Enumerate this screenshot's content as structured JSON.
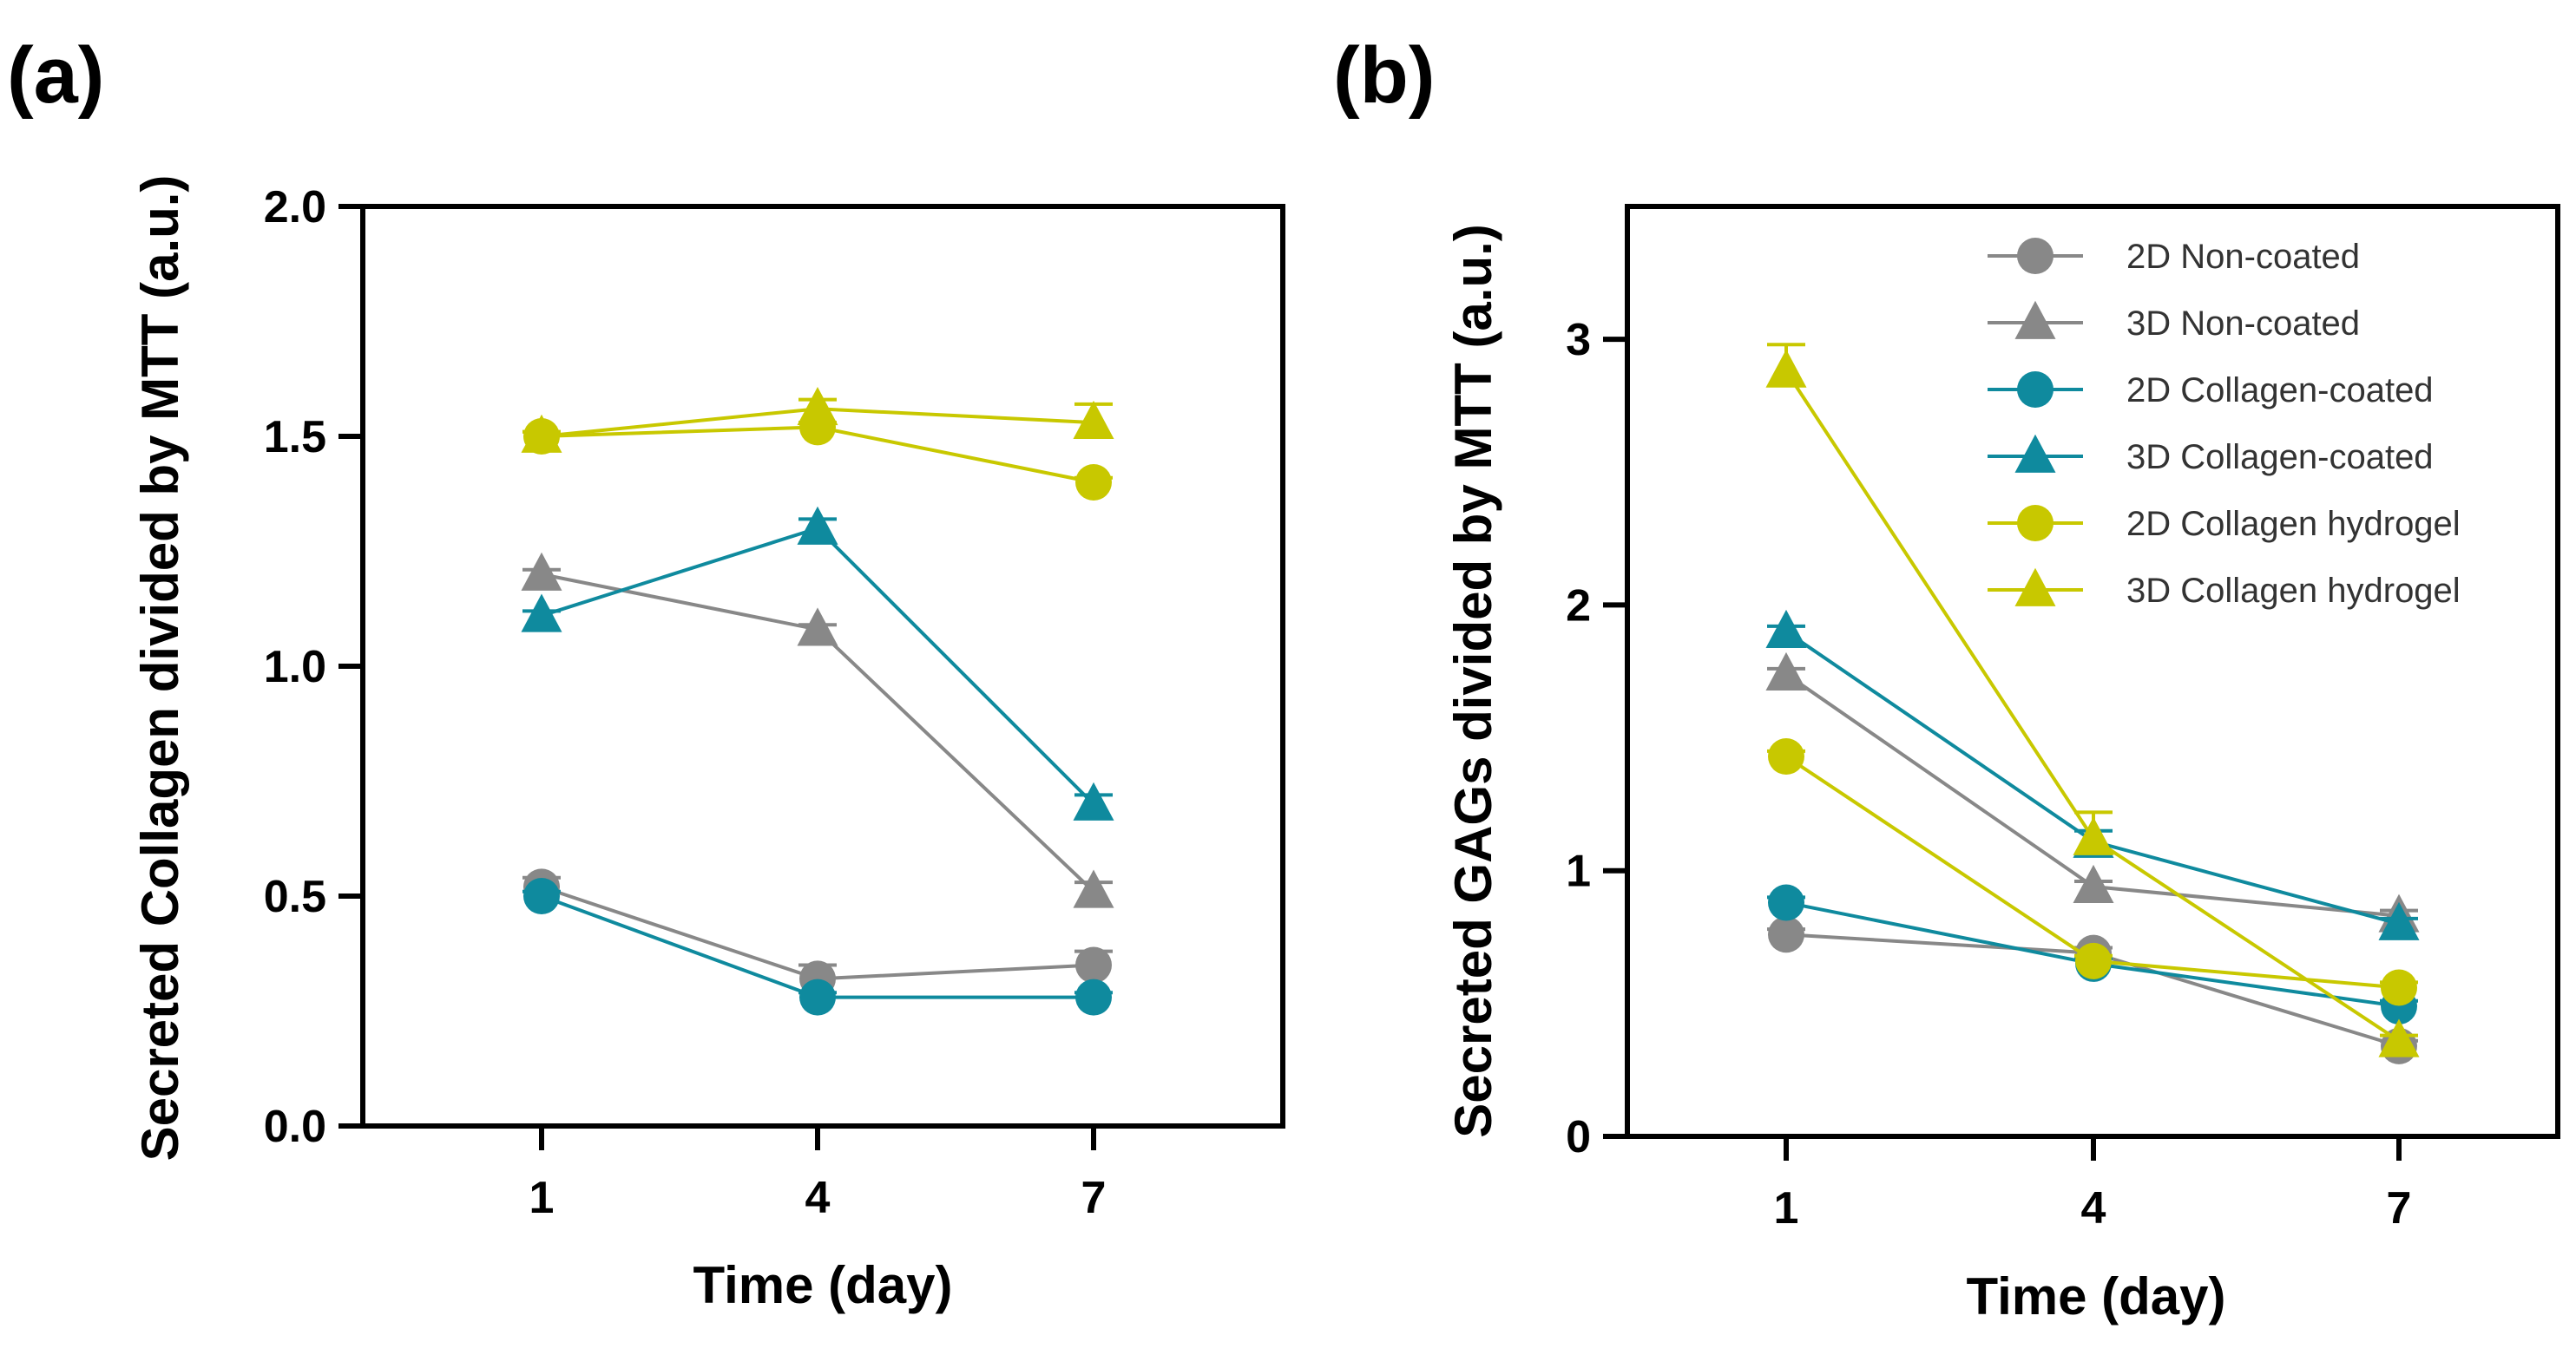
{
  "colors": {
    "non_coated": "#888888",
    "collagen_coated": "#0f8a9e",
    "collagen_hydrogel": "#c8c800"
  },
  "chart_data": [
    {
      "panel_label": "(a)",
      "type": "line",
      "title": "",
      "xlabel": "Time (day)",
      "ylabel": "Secreted Collagen divided by MTT (a.u.)",
      "categories": [
        "1",
        "4",
        "7"
      ],
      "ylim": [
        0,
        2.0
      ],
      "yticks": [
        0.0,
        0.5,
        1.0,
        1.5,
        2.0
      ],
      "ytick_labels": [
        "0.0",
        "0.5",
        "1.0",
        "1.5",
        "2.0"
      ],
      "grid": false,
      "legend": null,
      "series": [
        {
          "name": "2D Non-coated",
          "marker": "circle",
          "color": "#888888",
          "values": [
            0.52,
            0.32,
            0.35
          ],
          "errors": [
            0.02,
            0.03,
            0.03
          ]
        },
        {
          "name": "3D Non-coated",
          "marker": "triangle",
          "color": "#888888",
          "values": [
            1.2,
            1.08,
            0.51
          ],
          "errors": [
            0.01,
            0.01,
            0.02
          ]
        },
        {
          "name": "2D Collagen-coated",
          "marker": "circle",
          "color": "#0f8a9e",
          "values": [
            0.5,
            0.28,
            0.28
          ],
          "errors": [
            0.01,
            0.01,
            0.01
          ]
        },
        {
          "name": "3D Collagen-coated",
          "marker": "triangle",
          "color": "#0f8a9e",
          "values": [
            1.11,
            1.3,
            0.7
          ],
          "errors": [
            0.01,
            0.02,
            0.02
          ]
        },
        {
          "name": "2D Collagen hydrogel",
          "marker": "circle",
          "color": "#c8c800",
          "values": [
            1.5,
            1.52,
            1.4
          ],
          "errors": [
            0.01,
            0.01,
            0.01
          ]
        },
        {
          "name": "3D Collagen hydrogel",
          "marker": "triangle",
          "color": "#c8c800",
          "values": [
            1.5,
            1.56,
            1.53
          ],
          "errors": [
            0.01,
            0.02,
            0.04
          ]
        }
      ]
    },
    {
      "panel_label": "(b)",
      "type": "line",
      "title": "",
      "xlabel": "Time (day)",
      "ylabel": "Secreted GAGs divided by MTT (a.u.)",
      "categories": [
        "1",
        "4",
        "7"
      ],
      "ylim": [
        0,
        3.5
      ],
      "yticks": [
        0,
        1,
        2,
        3
      ],
      "ytick_labels": [
        "0",
        "1",
        "2",
        "3"
      ],
      "grid": false,
      "legend": "top-right",
      "series": [
        {
          "name": "2D Non-coated",
          "marker": "circle",
          "color": "#888888",
          "values": [
            0.76,
            0.69,
            0.34
          ],
          "errors": [
            0.02,
            0.02,
            0.02
          ]
        },
        {
          "name": "3D Non-coated",
          "marker": "triangle",
          "color": "#888888",
          "values": [
            1.74,
            0.94,
            0.83
          ],
          "errors": [
            0.02,
            0.02,
            0.02
          ]
        },
        {
          "name": "2D Collagen-coated",
          "marker": "circle",
          "color": "#0f8a9e",
          "values": [
            0.88,
            0.65,
            0.49
          ],
          "errors": [
            0.02,
            0.02,
            0.02
          ]
        },
        {
          "name": "3D Collagen-coated",
          "marker": "triangle",
          "color": "#0f8a9e",
          "values": [
            1.9,
            1.11,
            0.8
          ],
          "errors": [
            0.02,
            0.04,
            0.02
          ]
        },
        {
          "name": "2D Collagen hydrogel",
          "marker": "circle",
          "color": "#c8c800",
          "values": [
            1.43,
            0.66,
            0.56
          ],
          "errors": [
            0.02,
            0.02,
            0.02
          ]
        },
        {
          "name": "3D Collagen hydrogel",
          "marker": "triangle",
          "color": "#c8c800",
          "values": [
            2.88,
            1.12,
            0.36
          ],
          "errors": [
            0.1,
            0.1,
            0.02
          ]
        }
      ]
    }
  ]
}
